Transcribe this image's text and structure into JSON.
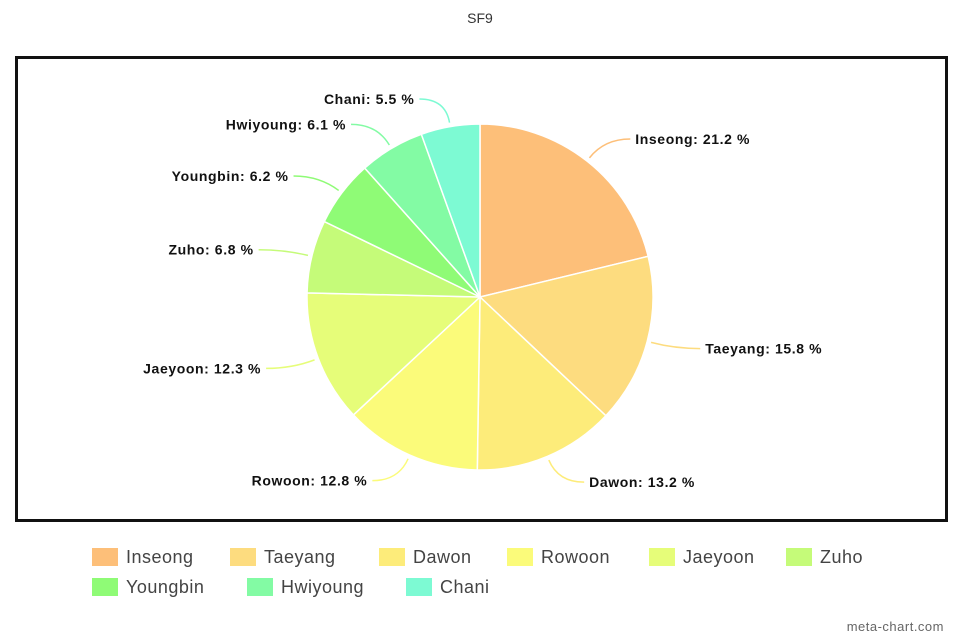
{
  "chart_data": {
    "type": "pie",
    "title": "SF9",
    "slices": [
      {
        "name": "Inseong",
        "value": 21.2,
        "label": "Inseong: 21.2 %",
        "color": "#fdbf79"
      },
      {
        "name": "Taeyang",
        "value": 15.8,
        "label": "Taeyang: 15.8 %",
        "color": "#fddc7f"
      },
      {
        "name": "Dawon",
        "value": 13.2,
        "label": "Dawon: 13.2 %",
        "color": "#fdec7a"
      },
      {
        "name": "Rowoon",
        "value": 12.8,
        "label": "Rowoon: 12.8 %",
        "color": "#fbfb7a"
      },
      {
        "name": "Jaeyoon",
        "value": 12.3,
        "label": "Jaeyoon: 12.3 %",
        "color": "#e6fd79"
      },
      {
        "name": "Zuho",
        "value": 6.8,
        "label": "Zuho: 6.8 %",
        "color": "#c5fb79"
      },
      {
        "name": "Youngbin",
        "value": 6.2,
        "label": "Youngbin: 6.2 %",
        "color": "#8ffb76"
      },
      {
        "name": "Hwiyoung",
        "value": 6.1,
        "label": "Hwiyoung: 6.1 %",
        "color": "#83fba4"
      },
      {
        "name": "Chani",
        "value": 5.5,
        "label": "Chani: 5.5 %",
        "color": "#7dfad3"
      }
    ],
    "legend_placement": "bottom"
  },
  "credit": "meta-chart.com"
}
